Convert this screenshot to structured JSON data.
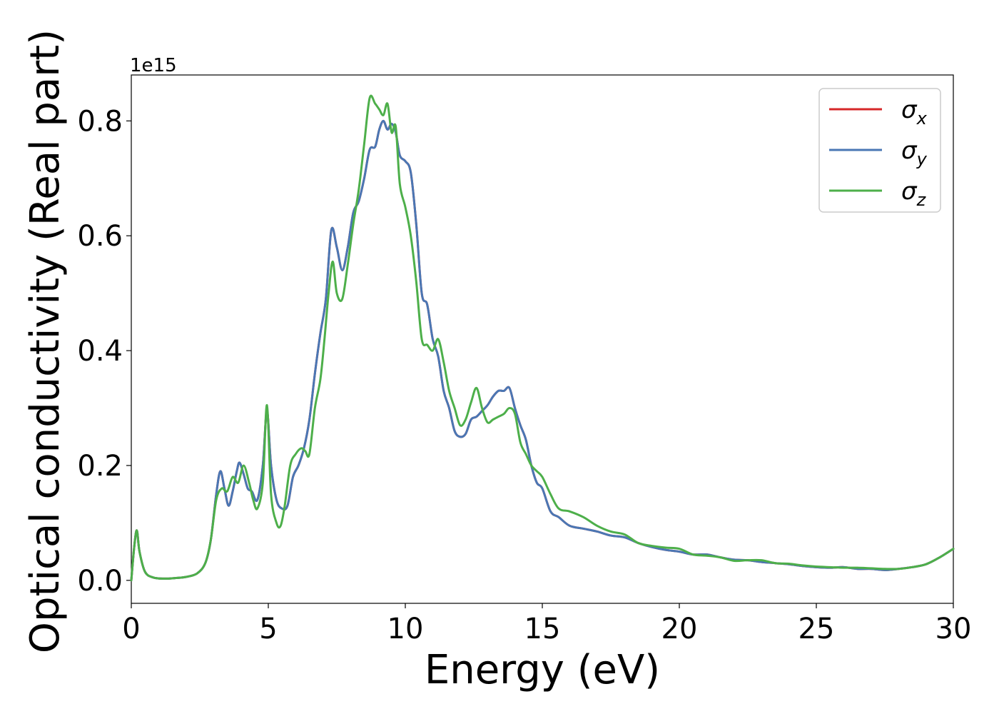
{
  "chart_data": {
    "type": "line",
    "title": "",
    "xlabel": "Energy (eV)",
    "ylabel": "Optical conductivity (Real part)",
    "y_multiplier": "1e15",
    "xlim": [
      0,
      30
    ],
    "ylim": [
      -0.04,
      0.88
    ],
    "xticks": [
      0,
      5,
      10,
      15,
      20,
      25,
      30
    ],
    "xtick_labels": [
      "0",
      "5",
      "10",
      "15",
      "20",
      "25",
      "30"
    ],
    "yticks": [
      0.0,
      0.2,
      0.4,
      0.6,
      0.8
    ],
    "ytick_labels": [
      "0.0",
      "0.2",
      "0.4",
      "0.6",
      "0.8"
    ],
    "grid": false,
    "legend_position": "top-right",
    "series": [
      {
        "name": "σx",
        "symbol": "σ",
        "subscript": "x",
        "color": "#d62728",
        "x": [
          0,
          0.1,
          0.2,
          0.3,
          0.5,
          0.8,
          1.2,
          1.6,
          2.0,
          2.4,
          2.7,
          2.9,
          3.1,
          3.25,
          3.4,
          3.55,
          3.7,
          3.85,
          3.95,
          4.1,
          4.25,
          4.4,
          4.6,
          4.8,
          4.95,
          5.1,
          5.3,
          5.5,
          5.7,
          5.9,
          6.1,
          6.3,
          6.5,
          6.7,
          6.9,
          7.1,
          7.3,
          7.5,
          7.7,
          7.9,
          8.1,
          8.3,
          8.5,
          8.7,
          8.9,
          9.05,
          9.2,
          9.35,
          9.5,
          9.65,
          9.8,
          10.0,
          10.2,
          10.4,
          10.6,
          10.8,
          11.0,
          11.2,
          11.4,
          11.6,
          11.8,
          12.0,
          12.2,
          12.4,
          12.6,
          12.8,
          13.0,
          13.2,
          13.4,
          13.6,
          13.8,
          14.0,
          14.2,
          14.4,
          14.6,
          14.8,
          15.0,
          15.3,
          15.6,
          16.0,
          16.5,
          17.0,
          17.5,
          18.0,
          18.5,
          19.0,
          19.5,
          20.0,
          20.5,
          21.0,
          21.5,
          22.0,
          22.5,
          23.0,
          23.5,
          24.0,
          24.5,
          25.0,
          25.5,
          26.0,
          26.5,
          27.0,
          27.5,
          28.0,
          28.5,
          29.0,
          29.5,
          30.0
        ],
        "values": [
          0.0,
          0.055,
          0.087,
          0.05,
          0.015,
          0.005,
          0.003,
          0.004,
          0.006,
          0.012,
          0.03,
          0.07,
          0.15,
          0.19,
          0.16,
          0.13,
          0.155,
          0.19,
          0.205,
          0.185,
          0.16,
          0.155,
          0.14,
          0.2,
          0.295,
          0.2,
          0.14,
          0.125,
          0.13,
          0.18,
          0.2,
          0.23,
          0.28,
          0.36,
          0.43,
          0.49,
          0.61,
          0.58,
          0.54,
          0.58,
          0.64,
          0.66,
          0.7,
          0.75,
          0.755,
          0.785,
          0.8,
          0.785,
          0.795,
          0.78,
          0.74,
          0.73,
          0.71,
          0.62,
          0.5,
          0.48,
          0.42,
          0.39,
          0.33,
          0.3,
          0.26,
          0.25,
          0.255,
          0.28,
          0.285,
          0.295,
          0.305,
          0.32,
          0.33,
          0.33,
          0.335,
          0.3,
          0.27,
          0.245,
          0.2,
          0.17,
          0.16,
          0.12,
          0.11,
          0.095,
          0.09,
          0.085,
          0.078,
          0.075,
          0.065,
          0.058,
          0.053,
          0.05,
          0.045,
          0.045,
          0.04,
          0.036,
          0.035,
          0.032,
          0.03,
          0.028,
          0.025,
          0.023,
          0.022,
          0.023,
          0.02,
          0.02,
          0.018,
          0.02,
          0.023,
          0.028,
          0.04,
          0.055
        ]
      },
      {
        "name": "σy",
        "symbol": "σ",
        "subscript": "y",
        "color": "#4a77b4",
        "x": [
          0,
          0.1,
          0.2,
          0.3,
          0.5,
          0.8,
          1.2,
          1.6,
          2.0,
          2.4,
          2.7,
          2.9,
          3.1,
          3.25,
          3.4,
          3.55,
          3.7,
          3.85,
          3.95,
          4.1,
          4.25,
          4.4,
          4.6,
          4.8,
          4.95,
          5.1,
          5.3,
          5.5,
          5.7,
          5.9,
          6.1,
          6.3,
          6.5,
          6.7,
          6.9,
          7.1,
          7.3,
          7.5,
          7.7,
          7.9,
          8.1,
          8.3,
          8.5,
          8.7,
          8.9,
          9.05,
          9.2,
          9.35,
          9.5,
          9.65,
          9.8,
          10.0,
          10.2,
          10.4,
          10.6,
          10.8,
          11.0,
          11.2,
          11.4,
          11.6,
          11.8,
          12.0,
          12.2,
          12.4,
          12.6,
          12.8,
          13.0,
          13.2,
          13.4,
          13.6,
          13.8,
          14.0,
          14.2,
          14.4,
          14.6,
          14.8,
          15.0,
          15.3,
          15.6,
          16.0,
          16.5,
          17.0,
          17.5,
          18.0,
          18.5,
          19.0,
          19.5,
          20.0,
          20.5,
          21.0,
          21.5,
          22.0,
          22.5,
          23.0,
          23.5,
          24.0,
          24.5,
          25.0,
          25.5,
          26.0,
          26.5,
          27.0,
          27.5,
          28.0,
          28.5,
          29.0,
          29.5,
          30.0
        ],
        "values": [
          0.0,
          0.055,
          0.087,
          0.05,
          0.015,
          0.005,
          0.003,
          0.004,
          0.006,
          0.012,
          0.03,
          0.07,
          0.15,
          0.19,
          0.16,
          0.13,
          0.155,
          0.19,
          0.205,
          0.185,
          0.16,
          0.155,
          0.14,
          0.2,
          0.295,
          0.2,
          0.14,
          0.125,
          0.13,
          0.18,
          0.2,
          0.23,
          0.28,
          0.36,
          0.43,
          0.49,
          0.61,
          0.58,
          0.54,
          0.58,
          0.64,
          0.66,
          0.7,
          0.75,
          0.755,
          0.785,
          0.8,
          0.785,
          0.795,
          0.78,
          0.74,
          0.73,
          0.71,
          0.62,
          0.5,
          0.48,
          0.42,
          0.39,
          0.33,
          0.3,
          0.26,
          0.25,
          0.255,
          0.28,
          0.285,
          0.295,
          0.305,
          0.32,
          0.33,
          0.33,
          0.335,
          0.3,
          0.27,
          0.245,
          0.2,
          0.17,
          0.16,
          0.12,
          0.11,
          0.095,
          0.09,
          0.085,
          0.078,
          0.075,
          0.065,
          0.058,
          0.053,
          0.05,
          0.045,
          0.045,
          0.04,
          0.036,
          0.035,
          0.032,
          0.03,
          0.028,
          0.025,
          0.023,
          0.022,
          0.023,
          0.02,
          0.02,
          0.018,
          0.02,
          0.023,
          0.028,
          0.04,
          0.055
        ]
      },
      {
        "name": "σz",
        "symbol": "σ",
        "subscript": "z",
        "color": "#4daf4a",
        "x": [
          0,
          0.1,
          0.2,
          0.3,
          0.5,
          0.8,
          1.2,
          1.6,
          2.0,
          2.4,
          2.7,
          2.9,
          3.1,
          3.3,
          3.5,
          3.7,
          3.9,
          4.1,
          4.3,
          4.45,
          4.6,
          4.8,
          4.95,
          5.1,
          5.3,
          5.45,
          5.6,
          5.8,
          6.0,
          6.2,
          6.35,
          6.5,
          6.7,
          6.9,
          7.05,
          7.2,
          7.35,
          7.5,
          7.7,
          7.9,
          8.1,
          8.3,
          8.5,
          8.7,
          8.9,
          9.05,
          9.2,
          9.35,
          9.5,
          9.65,
          9.8,
          10.0,
          10.2,
          10.4,
          10.6,
          10.8,
          11.0,
          11.2,
          11.4,
          11.6,
          11.8,
          12.0,
          12.2,
          12.4,
          12.6,
          12.8,
          13.0,
          13.2,
          13.4,
          13.6,
          13.8,
          14.0,
          14.2,
          14.4,
          14.6,
          14.8,
          15.0,
          15.3,
          15.6,
          16.0,
          16.5,
          17.0,
          17.5,
          18.0,
          18.5,
          19.0,
          19.5,
          20.0,
          20.5,
          21.0,
          21.5,
          22.0,
          22.5,
          23.0,
          23.5,
          24.0,
          24.5,
          25.0,
          25.5,
          26.0,
          26.5,
          27.0,
          27.5,
          28.0,
          28.5,
          29.0,
          29.5,
          30.0
        ],
        "values": [
          0.0,
          0.055,
          0.087,
          0.05,
          0.015,
          0.005,
          0.003,
          0.004,
          0.006,
          0.012,
          0.03,
          0.07,
          0.14,
          0.16,
          0.155,
          0.18,
          0.17,
          0.2,
          0.17,
          0.14,
          0.125,
          0.17,
          0.305,
          0.15,
          0.1,
          0.095,
          0.13,
          0.2,
          0.22,
          0.23,
          0.225,
          0.22,
          0.3,
          0.35,
          0.42,
          0.5,
          0.555,
          0.5,
          0.49,
          0.55,
          0.62,
          0.68,
          0.76,
          0.84,
          0.83,
          0.82,
          0.81,
          0.83,
          0.78,
          0.79,
          0.69,
          0.65,
          0.6,
          0.52,
          0.42,
          0.41,
          0.4,
          0.42,
          0.38,
          0.33,
          0.3,
          0.27,
          0.28,
          0.31,
          0.335,
          0.3,
          0.275,
          0.28,
          0.285,
          0.29,
          0.3,
          0.29,
          0.24,
          0.22,
          0.2,
          0.19,
          0.18,
          0.15,
          0.125,
          0.12,
          0.11,
          0.095,
          0.085,
          0.08,
          0.065,
          0.06,
          0.057,
          0.055,
          0.045,
          0.043,
          0.04,
          0.034,
          0.035,
          0.035,
          0.03,
          0.029,
          0.026,
          0.024,
          0.023,
          0.022,
          0.022,
          0.021,
          0.02,
          0.02,
          0.023,
          0.028,
          0.04,
          0.055
        ]
      }
    ]
  }
}
